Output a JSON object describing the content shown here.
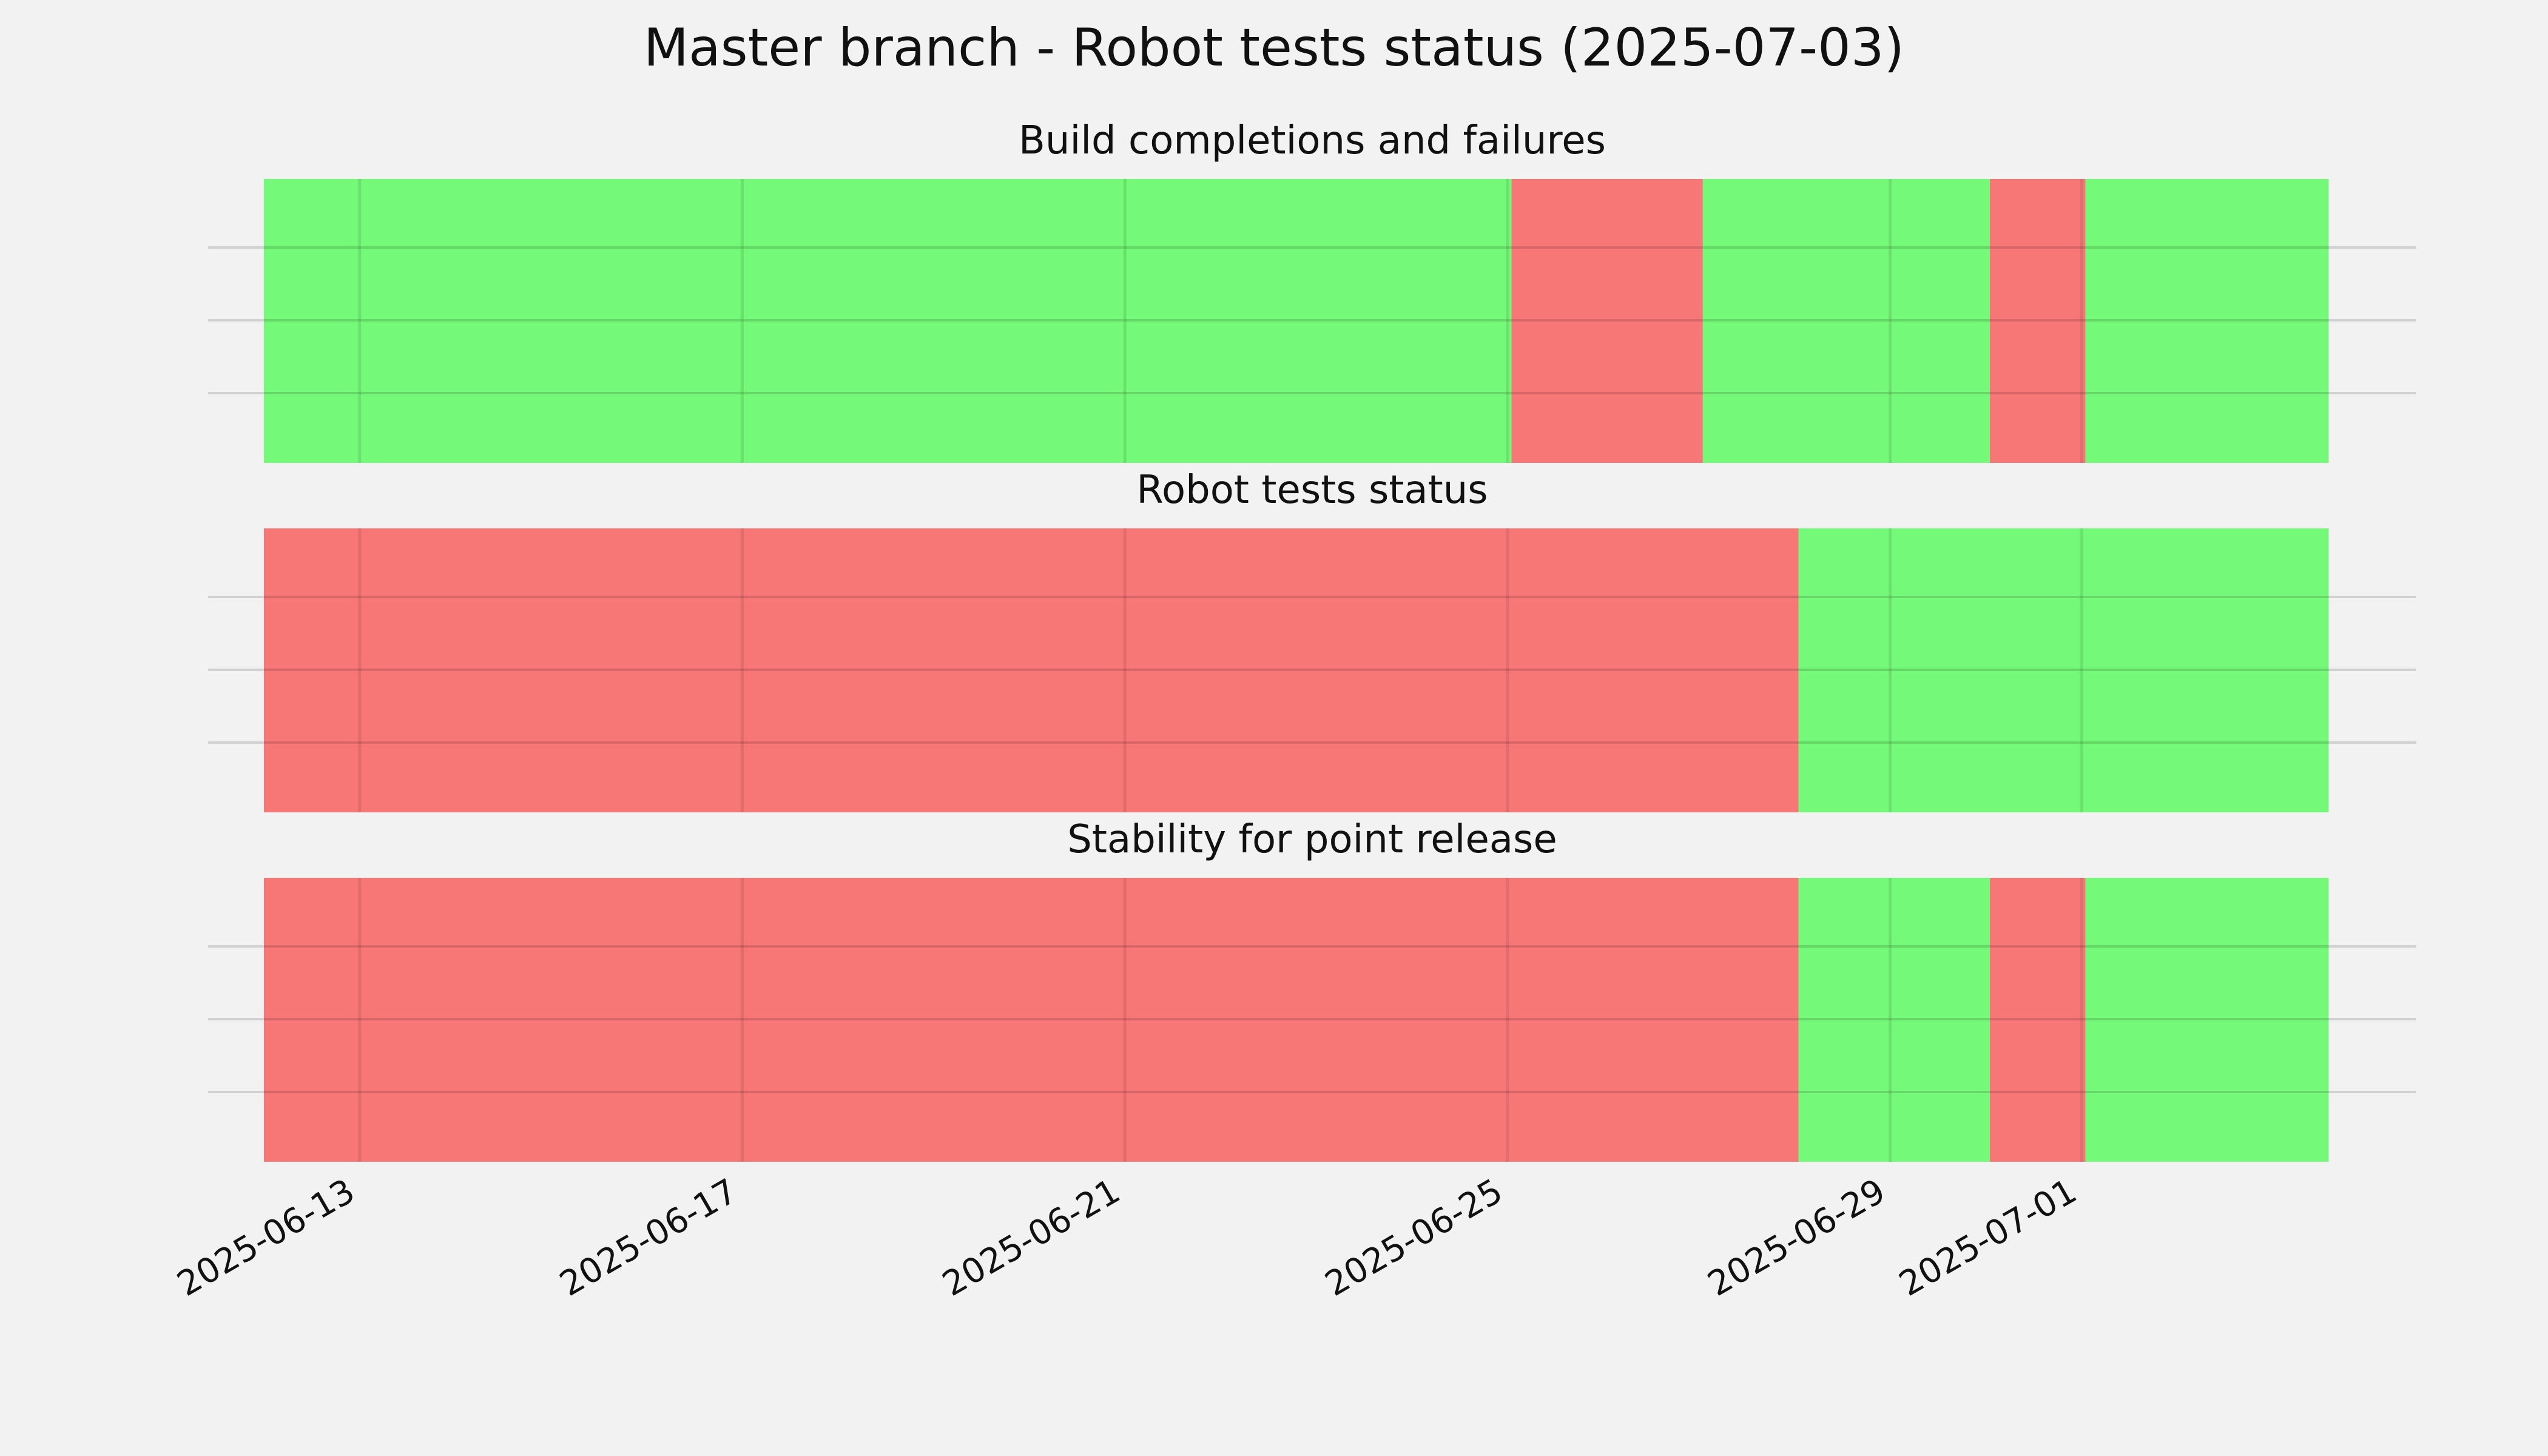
{
  "title": "Master branch - Robot tests status (2025-07-03)",
  "colors": {
    "background": "#f2f2f2",
    "pass": "#74f978",
    "fail": "#f77777",
    "grid": "#000000",
    "text": "#111111"
  },
  "chart_data": {
    "type": "bar",
    "orientation": "horizontal",
    "x_axis": {
      "type": "date",
      "range": [
        "2025-06-11T10:00",
        "2025-07-04T12:00"
      ],
      "ticks": [
        "2025-06-13",
        "2025-06-17",
        "2025-06-21",
        "2025-06-25",
        "2025-06-29",
        "2025-07-01"
      ]
    },
    "grid": true,
    "panels": [
      {
        "title": "Build completions and failures",
        "segments": [
          {
            "start": "2025-06-12T00:00",
            "end": "2025-06-25T01:00",
            "status": "pass"
          },
          {
            "start": "2025-06-25T01:00",
            "end": "2025-06-27T01:00",
            "status": "fail"
          },
          {
            "start": "2025-06-27T01:00",
            "end": "2025-06-30T01:00",
            "status": "pass"
          },
          {
            "start": "2025-06-30T01:00",
            "end": "2025-07-01T01:00",
            "status": "fail"
          },
          {
            "start": "2025-07-01T01:00",
            "end": "2025-07-03T14:00",
            "status": "pass"
          }
        ]
      },
      {
        "title": "Robot tests status",
        "segments": [
          {
            "start": "2025-06-12T00:00",
            "end": "2025-06-28T01:00",
            "status": "fail"
          },
          {
            "start": "2025-06-28T01:00",
            "end": "2025-07-03T14:00",
            "status": "pass"
          }
        ]
      },
      {
        "title": "Stability for point release",
        "segments": [
          {
            "start": "2025-06-12T00:00",
            "end": "2025-06-28T01:00",
            "status": "fail"
          },
          {
            "start": "2025-06-28T01:00",
            "end": "2025-06-30T01:00",
            "status": "pass"
          },
          {
            "start": "2025-06-30T01:00",
            "end": "2025-07-01T01:00",
            "status": "fail"
          },
          {
            "start": "2025-07-01T01:00",
            "end": "2025-07-03T14:00",
            "status": "pass"
          }
        ]
      }
    ]
  }
}
